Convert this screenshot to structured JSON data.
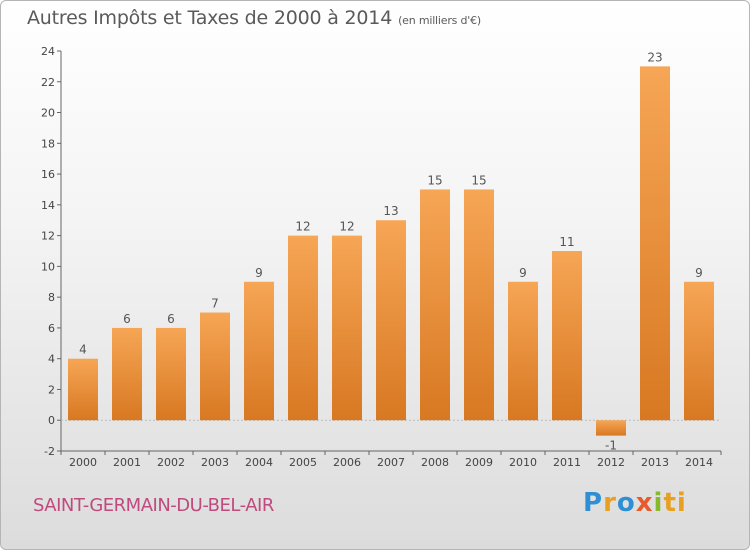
{
  "header": {
    "title": "Autres Impôts et Taxes de 2000 à 2014",
    "unit": "(en milliers d'€)"
  },
  "footer": {
    "place": "SAINT-GERMAIN-DU-BEL-AIR",
    "logo_letters": [
      "P",
      "r",
      "o",
      "x",
      "i",
      "ti"
    ]
  },
  "colors": {
    "bar_light": "#f6a655",
    "bar_dark": "#d87822",
    "place_text": "#c04a7e"
  },
  "chart_data": {
    "type": "bar",
    "title": "Autres Impôts et Taxes de 2000 à 2014",
    "subtitle": "(en milliers d'€)",
    "xlabel": "",
    "ylabel": "",
    "categories": [
      "2000",
      "2001",
      "2002",
      "2003",
      "2004",
      "2005",
      "2006",
      "2007",
      "2008",
      "2009",
      "2010",
      "2011",
      "2012",
      "2013",
      "2014"
    ],
    "values": [
      4,
      6,
      6,
      7,
      9,
      12,
      12,
      13,
      15,
      15,
      9,
      11,
      -1,
      23,
      9
    ],
    "ylim": [
      -2,
      24
    ],
    "yticks": [
      -2,
      0,
      2,
      4,
      6,
      8,
      10,
      12,
      14,
      16,
      18,
      20,
      22,
      24
    ],
    "grid": false,
    "legend": "none"
  }
}
